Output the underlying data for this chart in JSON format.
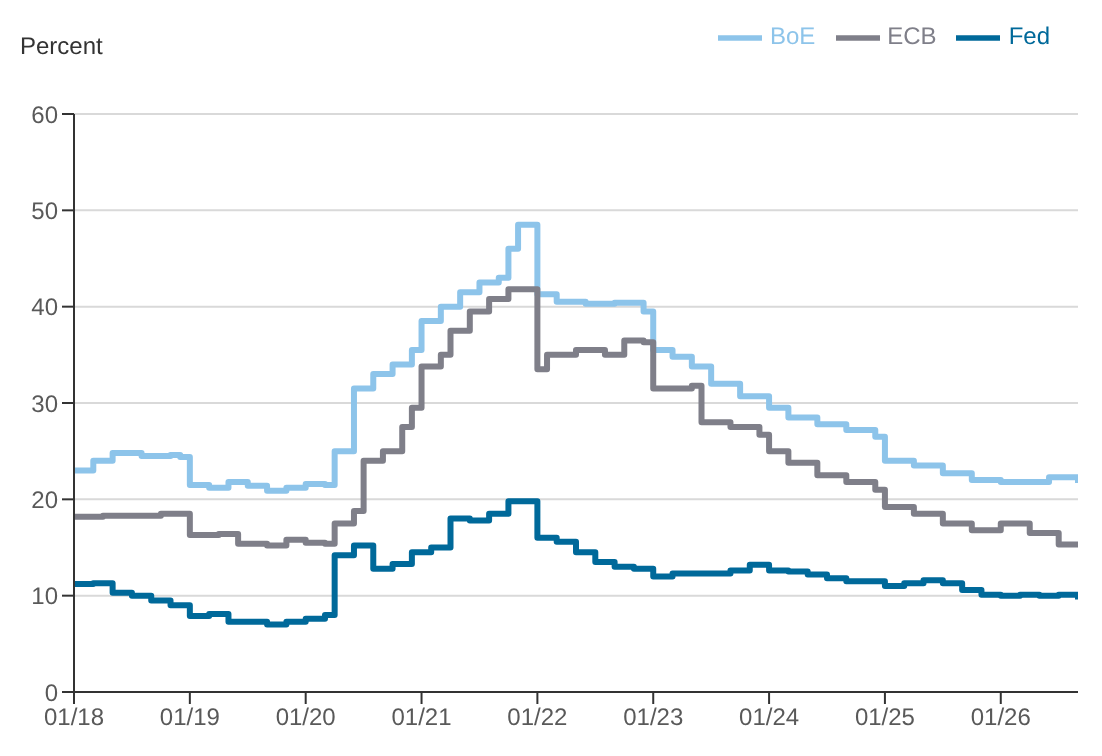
{
  "chart_data": {
    "type": "step",
    "ylabel": "Percent",
    "ylim": [
      0,
      60
    ],
    "yticks": [
      0,
      10,
      20,
      30,
      40,
      50,
      60
    ],
    "xlim": [
      "2018-01",
      "2026-09"
    ],
    "xticks": [
      {
        "value": "2018-01",
        "label": "01/18"
      },
      {
        "value": "2019-01",
        "label": "01/19"
      },
      {
        "value": "2020-01",
        "label": "01/20"
      },
      {
        "value": "2021-01",
        "label": "01/21"
      },
      {
        "value": "2022-01",
        "label": "01/22"
      },
      {
        "value": "2023-01",
        "label": "01/23"
      },
      {
        "value": "2024-01",
        "label": "01/24"
      },
      {
        "value": "2025-01",
        "label": "01/25"
      },
      {
        "value": "2026-01",
        "label": "01/26"
      }
    ],
    "grid": "y",
    "legend": "top right",
    "marker": "none",
    "line_style": "solid",
    "series": [
      {
        "name": "Fed",
        "color": "#00699a",
        "x": [
          "2018-01",
          "2018-03",
          "2018-05",
          "2018-07",
          "2018-09",
          "2018-11",
          "2019-01",
          "2019-03",
          "2019-05",
          "2019-07",
          "2019-09",
          "2019-11",
          "2020-01",
          "2020-03",
          "2020-04",
          "2020-06",
          "2020-08",
          "2020-10",
          "2020-12",
          "2021-02",
          "2021-04",
          "2021-06",
          "2021-08",
          "2021-10",
          "2021-12",
          "2022-01",
          "2022-03",
          "2022-05",
          "2022-07",
          "2022-09",
          "2022-11",
          "2023-01",
          "2023-03",
          "2023-05",
          "2023-07",
          "2023-09",
          "2023-11",
          "2024-01",
          "2024-03",
          "2024-05",
          "2024-07",
          "2024-09",
          "2024-11",
          "2025-01",
          "2025-03",
          "2025-05",
          "2025-07",
          "2025-09",
          "2025-11",
          "2026-01",
          "2026-03",
          "2026-05",
          "2026-07",
          "2026-09"
        ],
        "values": [
          11.2,
          11.3,
          10.3,
          10,
          9.5,
          9,
          7.9,
          8.1,
          7.3,
          7.3,
          7,
          7.3,
          7.6,
          8,
          14.2,
          15.2,
          12.8,
          13.3,
          14.5,
          15,
          18,
          17.8,
          18.5,
          19.8,
          19.8,
          16,
          15.6,
          14.5,
          13.5,
          13,
          12.8,
          12,
          12.3,
          12.3,
          12.3,
          12.6,
          13.2,
          12.6,
          12.5,
          12.2,
          11.8,
          11.5,
          11.5,
          11,
          11.3,
          11.6,
          11.3,
          10.6,
          10.1,
          10,
          10.1,
          10,
          10.1,
          9.6
        ]
      },
      {
        "name": "BoE",
        "color": "#8dc4ea",
        "x": [
          "2018-01",
          "2018-03",
          "2018-05",
          "2018-08",
          "2018-11",
          "2018-12",
          "2019-01",
          "2019-03",
          "2019-05",
          "2019-07",
          "2019-09",
          "2019-11",
          "2020-01",
          "2020-03",
          "2020-04",
          "2020-06",
          "2020-08",
          "2020-10",
          "2020-12",
          "2021-01",
          "2021-03",
          "2021-05",
          "2021-07",
          "2021-09",
          "2021-10",
          "2021-11",
          "2021-12",
          "2022-01",
          "2022-03",
          "2022-06",
          "2022-09",
          "2022-12",
          "2023-01",
          "2023-03",
          "2023-05",
          "2023-07",
          "2023-10",
          "2024-01",
          "2024-03",
          "2024-06",
          "2024-09",
          "2024-12",
          "2025-01",
          "2025-04",
          "2025-07",
          "2025-10",
          "2026-01",
          "2026-04",
          "2026-06",
          "2026-09"
        ],
        "values": [
          23,
          24,
          24.8,
          24.5,
          24.6,
          24.4,
          21.5,
          21.2,
          21.8,
          21.4,
          20.9,
          21.2,
          21.6,
          21.5,
          25,
          31.5,
          33,
          34,
          35.5,
          38.5,
          40,
          41.5,
          42.5,
          43,
          46,
          48.5,
          48.5,
          41.3,
          40.5,
          40.3,
          40.4,
          39.5,
          35.5,
          34.8,
          33.8,
          32,
          30.7,
          29.5,
          28.5,
          27.8,
          27.2,
          26.5,
          24,
          23.5,
          22.7,
          22,
          21.8,
          21.8,
          22.3,
          21.7
        ]
      },
      {
        "name": "ECB",
        "color": "#7f7f89",
        "x": [
          "2018-01",
          "2018-04",
          "2018-07",
          "2018-10",
          "2018-12",
          "2019-01",
          "2019-04",
          "2019-06",
          "2019-09",
          "2019-11",
          "2020-01",
          "2020-03",
          "2020-04",
          "2020-06",
          "2020-07",
          "2020-09",
          "2020-11",
          "2020-12",
          "2021-01",
          "2021-03",
          "2021-04",
          "2021-06",
          "2021-08",
          "2021-10",
          "2021-12",
          "2022-01",
          "2022-02",
          "2022-05",
          "2022-08",
          "2022-10",
          "2022-12",
          "2023-01",
          "2023-03",
          "2023-05",
          "2023-06",
          "2023-09",
          "2023-12",
          "2024-01",
          "2024-03",
          "2024-06",
          "2024-09",
          "2024-12",
          "2025-01",
          "2025-04",
          "2025-07",
          "2025-10",
          "2026-01",
          "2026-04",
          "2026-07",
          "2026-09"
        ],
        "values": [
          18.2,
          18.3,
          18.3,
          18.5,
          18.5,
          16.3,
          16.4,
          15.4,
          15.2,
          15.8,
          15.5,
          15.4,
          17.5,
          18.8,
          24,
          25,
          27.5,
          29.5,
          33.8,
          35,
          37.5,
          39.5,
          40.8,
          41.8,
          41.8,
          33.5,
          35,
          35.5,
          35,
          36.5,
          36.3,
          31.5,
          31.5,
          31.8,
          28,
          27.5,
          26.7,
          25,
          23.8,
          22.5,
          21.8,
          21,
          19.2,
          18.5,
          17.5,
          16.8,
          17.5,
          16.5,
          15.3,
          15.2
        ]
      }
    ]
  }
}
